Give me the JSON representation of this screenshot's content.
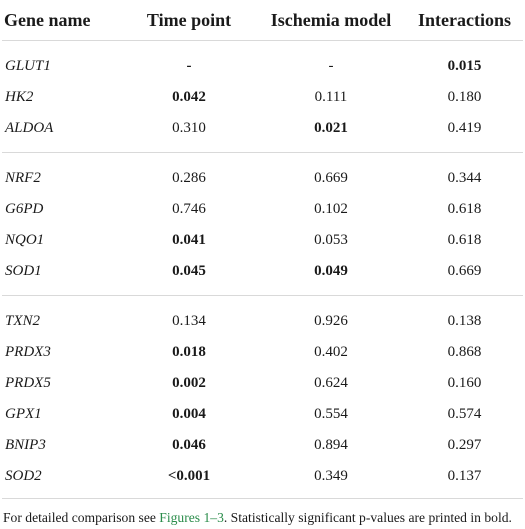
{
  "table": {
    "headers": [
      "Gene name",
      "Time point",
      "Ischemia model",
      "Interactions"
    ],
    "groups": [
      [
        {
          "gene": "GLUT1",
          "time": "-",
          "ischemia": "-",
          "interactions": "0.015",
          "bold": [
            true,
            false,
            true
          ]
        },
        {
          "gene": "HK2",
          "time": "0.042",
          "ischemia": "0.111",
          "interactions": "0.180",
          "bold": [
            true,
            false,
            false
          ]
        },
        {
          "gene": "ALDOA",
          "time": "0.310",
          "ischemia": "0.021",
          "interactions": "0.419",
          "bold": [
            false,
            true,
            false
          ]
        }
      ],
      [
        {
          "gene": "NRF2",
          "time": "0.286",
          "ischemia": "0.669",
          "interactions": "0.344",
          "bold": [
            false,
            false,
            false
          ]
        },
        {
          "gene": "G6PD",
          "time": "0.746",
          "ischemia": "0.102",
          "interactions": "0.618",
          "bold": [
            false,
            false,
            false
          ]
        },
        {
          "gene": "NQO1",
          "time": "0.041",
          "ischemia": "0.053",
          "interactions": "0.618",
          "bold": [
            true,
            false,
            false
          ]
        },
        {
          "gene": "SOD1",
          "time": "0.045",
          "ischemia": "0.049",
          "interactions": "0.669",
          "bold": [
            true,
            true,
            false
          ]
        }
      ],
      [
        {
          "gene": "TXN2",
          "time": "0.134",
          "ischemia": "0.926",
          "interactions": "0.138",
          "bold": [
            false,
            false,
            false
          ]
        },
        {
          "gene": "PRDX3",
          "time": "0.018",
          "ischemia": "0.402",
          "interactions": "0.868",
          "bold": [
            true,
            false,
            false
          ]
        },
        {
          "gene": "PRDX5",
          "time": "0.002",
          "ischemia": "0.624",
          "interactions": "0.160",
          "bold": [
            true,
            false,
            false
          ]
        },
        {
          "gene": "GPX1",
          "time": "0.004",
          "ischemia": "0.554",
          "interactions": "0.574",
          "bold": [
            true,
            false,
            false
          ]
        },
        {
          "gene": "BNIP3",
          "time": "0.046",
          "ischemia": "0.894",
          "interactions": "0.297",
          "bold": [
            true,
            false,
            false
          ]
        },
        {
          "gene": "SOD2",
          "time": "<0.001",
          "ischemia": "0.349",
          "interactions": "0.137",
          "bold": [
            true,
            false,
            false
          ]
        }
      ]
    ]
  },
  "footnote": {
    "before": "For detailed comparison see ",
    "link": "Figures 1–3",
    "after": ". Statistically significant p-values are printed in bold."
  },
  "colors": {
    "link": "#2a8c4a",
    "rule": "#d9d9d9"
  }
}
